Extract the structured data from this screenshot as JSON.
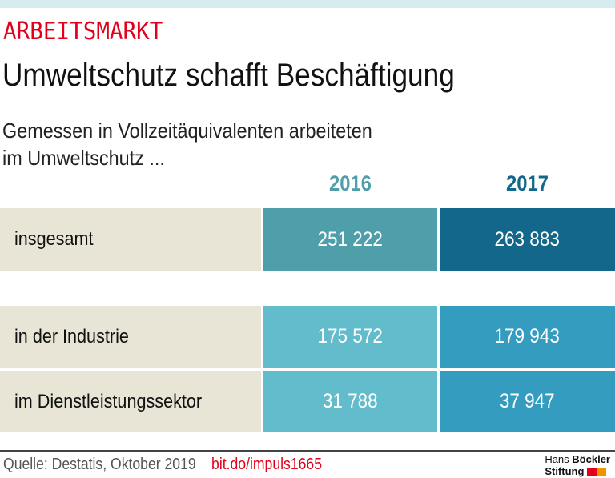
{
  "kicker": "ARBEITSMARKT",
  "title": "Umweltschutz schafft Beschäftigung",
  "subtitle_line1": "Gemessen in Vollzeitäquivalenten arbeiteten",
  "subtitle_line2": "im Umweltschutz ...",
  "chart_data": {
    "type": "table",
    "columns": [
      "2016",
      "2017"
    ],
    "rows": [
      {
        "label": "insgesamt",
        "values": [
          "251 222",
          "263 883"
        ]
      },
      {
        "label": "in der Industrie",
        "values": [
          "175 572",
          "179 943"
        ]
      },
      {
        "label": "im Dienstleistungssektor",
        "values": [
          "31 788",
          "37 947"
        ]
      }
    ]
  },
  "colors": {
    "accent": "#e2001a",
    "year2016": "#4f9faa",
    "year2017": "#13678a",
    "label_bg": "#e8e5d6",
    "sub2016": "#62bccb",
    "sub2017": "#339cbf"
  },
  "footer": {
    "source": "Quelle: Destatis, Oktober 2019",
    "link": "bit.do/impuls1665",
    "logo_line1a": "Hans",
    "logo_line1b": "Böckler",
    "logo_line2": "Stiftung"
  }
}
